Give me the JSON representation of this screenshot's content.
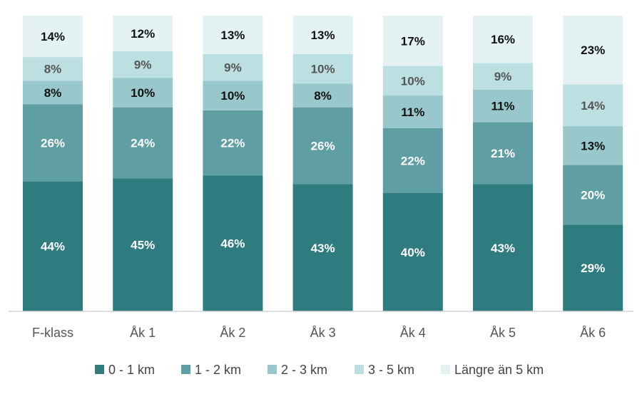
{
  "chart_data": {
    "type": "bar",
    "stacked": true,
    "normalized": true,
    "categories": [
      "F-klass",
      "Åk 1",
      "Åk 2",
      "Åk 3",
      "Åk 4",
      "Åk 5",
      "Åk 6"
    ],
    "series": [
      {
        "name": "0 - 1 km",
        "color": "#2e7b80",
        "label_color": "#ffffff",
        "values": [
          44,
          45,
          46,
          43,
          40,
          43,
          29
        ]
      },
      {
        "name": "1 - 2 km",
        "color": "#5f9ea3",
        "label_color": "#ffffff",
        "values": [
          26,
          24,
          22,
          26,
          22,
          21,
          20
        ]
      },
      {
        "name": "2 - 3 km",
        "color": "#99c8cc",
        "label_color": "#111111",
        "values": [
          8,
          10,
          10,
          8,
          11,
          11,
          13
        ]
      },
      {
        "name": "3 - 5 km",
        "color": "#bcdfe2",
        "label_color": "#555555",
        "values": [
          8,
          9,
          9,
          10,
          10,
          9,
          14
        ]
      },
      {
        "name": "Längre än 5 km",
        "color": "#e4f2f4",
        "label_color": "#111111",
        "values": [
          14,
          12,
          13,
          13,
          17,
          16,
          23
        ]
      }
    ],
    "value_suffix": "%",
    "legend_position": "bottom",
    "grid": false
  }
}
